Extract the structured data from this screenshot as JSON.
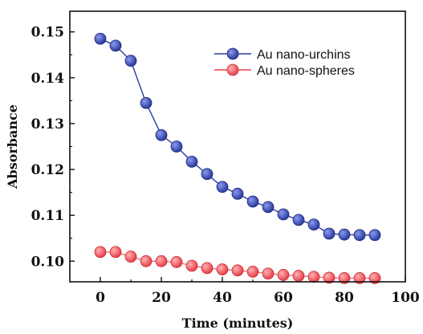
{
  "chart_data": {
    "type": "line",
    "xlabel": "Time (minutes)",
    "ylabel": "Absorbance",
    "xlim": [
      -10,
      100
    ],
    "ylim": [
      0.0955,
      0.1545
    ],
    "xticks": [
      0,
      20,
      40,
      60,
      80,
      100
    ],
    "yticks": [
      0.1,
      0.11,
      0.12,
      0.13,
      0.14,
      0.15
    ],
    "ytick_labels": [
      "0.10",
      "0.11",
      "0.12",
      "0.13",
      "0.14",
      "0.15"
    ],
    "xtick_labels": [
      "0",
      "20",
      "40",
      "60",
      "80",
      "100"
    ],
    "grid": false,
    "legend_position": "top-right",
    "x": [
      0,
      5,
      10,
      15,
      20,
      25,
      30,
      35,
      40,
      45,
      50,
      55,
      60,
      65,
      70,
      75,
      80,
      85,
      90
    ],
    "series": [
      {
        "name": "Au nano-urchins",
        "color": "#2b3a9e",
        "values": [
          0.1485,
          0.147,
          0.1437,
          0.1345,
          0.1275,
          0.125,
          0.1217,
          0.119,
          0.1162,
          0.1147,
          0.113,
          0.1118,
          0.1102,
          0.109,
          0.108,
          0.106,
          0.1058,
          0.1057,
          0.1057
        ]
      },
      {
        "name": "Au nano-spheres",
        "color": "#e8404a",
        "values": [
          0.102,
          0.102,
          0.101,
          0.1,
          0.1,
          0.0998,
          0.099,
          0.0985,
          0.0982,
          0.098,
          0.0977,
          0.0973,
          0.097,
          0.0968,
          0.0966,
          0.0964,
          0.0963,
          0.0963,
          0.0963
        ]
      }
    ]
  }
}
